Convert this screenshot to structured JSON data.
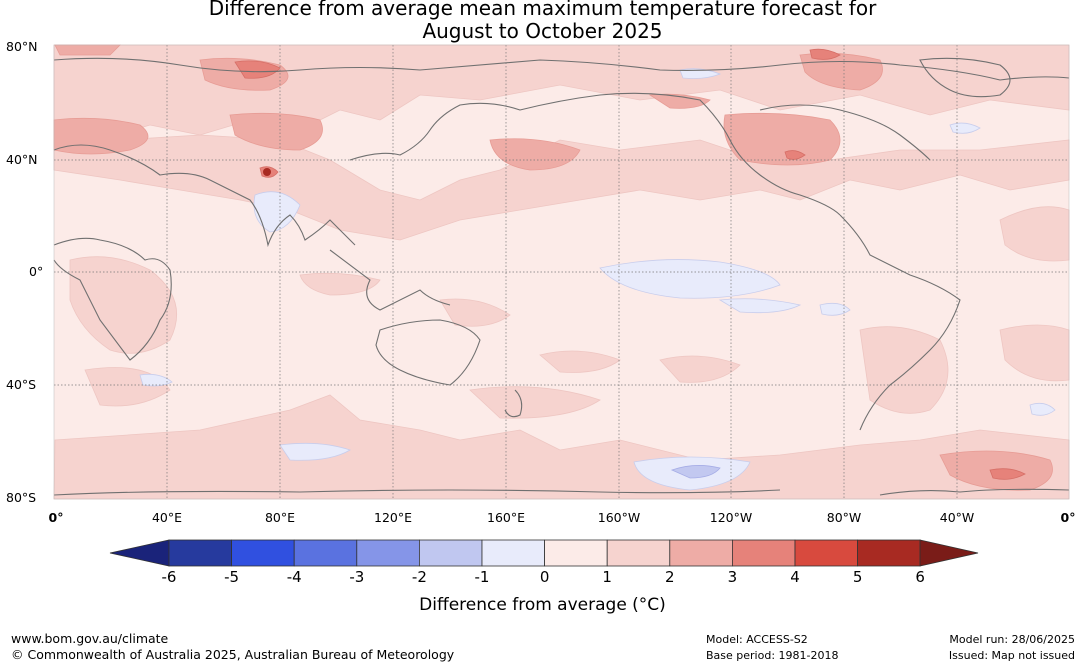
{
  "title": {
    "line1": "Difference from average mean maximum temperature forecast for",
    "line2": "August to October 2025"
  },
  "map": {
    "lat_labels": [
      "80°N",
      "40°N",
      "0°",
      "40°S",
      "80°S"
    ],
    "lon_labels": [
      "0°",
      "40°E",
      "80°E",
      "120°E",
      "160°E",
      "160°W",
      "120°W",
      "80°W",
      "40°W",
      "0°"
    ],
    "palette": {
      "ocean_base": "#fcebe8",
      "plus_1_2": "#f6d3cf",
      "plus_2_3": "#eeaca6",
      "plus_3_4": "#e6827a",
      "minus_0_1": "#e8ebfb",
      "minus_1_2": "#c2c8f0",
      "coast": "#707070",
      "grid": "#777777"
    }
  },
  "colorbar": {
    "ticks": [
      "-6",
      "-5",
      "-4",
      "-3",
      "-2",
      "-1",
      "0",
      "1",
      "2",
      "3",
      "4",
      "5",
      "6"
    ],
    "colors": [
      "#263a9e",
      "#3050e0",
      "#5a72e0",
      "#8595e8",
      "#c0c7f0",
      "#e8ebfb",
      "#fcebe8",
      "#f6d3cf",
      "#eeaca6",
      "#e6827a",
      "#d84a3e",
      "#a82a22"
    ],
    "low_extend_color": "#1a237a",
    "high_extend_color": "#7a1c18",
    "label": "Difference from average (°C)"
  },
  "footer": {
    "website": "www.bom.gov.au/climate",
    "copyright": "© Commonwealth of Australia 2025, Australian Bureau of Meteorology",
    "model": "Model: ACCESS-S2",
    "base_period": "Base period: 1981-2018",
    "model_run": "Model run: 28/06/2025",
    "issued": "Issued: Map not issued"
  }
}
